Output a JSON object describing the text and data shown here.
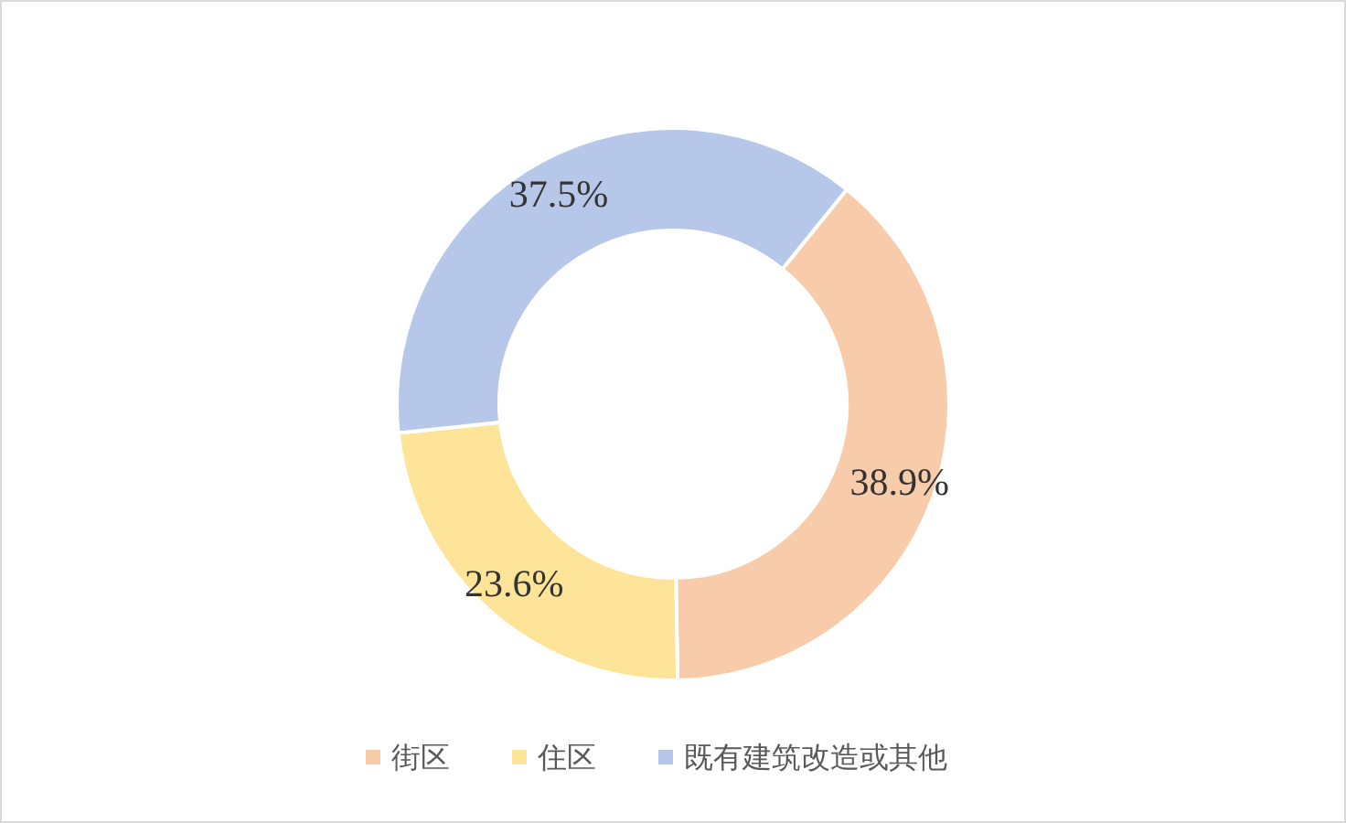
{
  "chart_data": {
    "type": "donut",
    "categories": [
      "街区",
      "住区",
      "既有建筑改造或其他"
    ],
    "values": [
      38.9,
      23.6,
      37.5
    ],
    "value_labels": [
      "38.9%",
      "23.6%",
      "37.5%"
    ],
    "colors": [
      "#f8ccaa",
      "#fee498",
      "#b6c7e9"
    ],
    "legend": "bottom"
  }
}
